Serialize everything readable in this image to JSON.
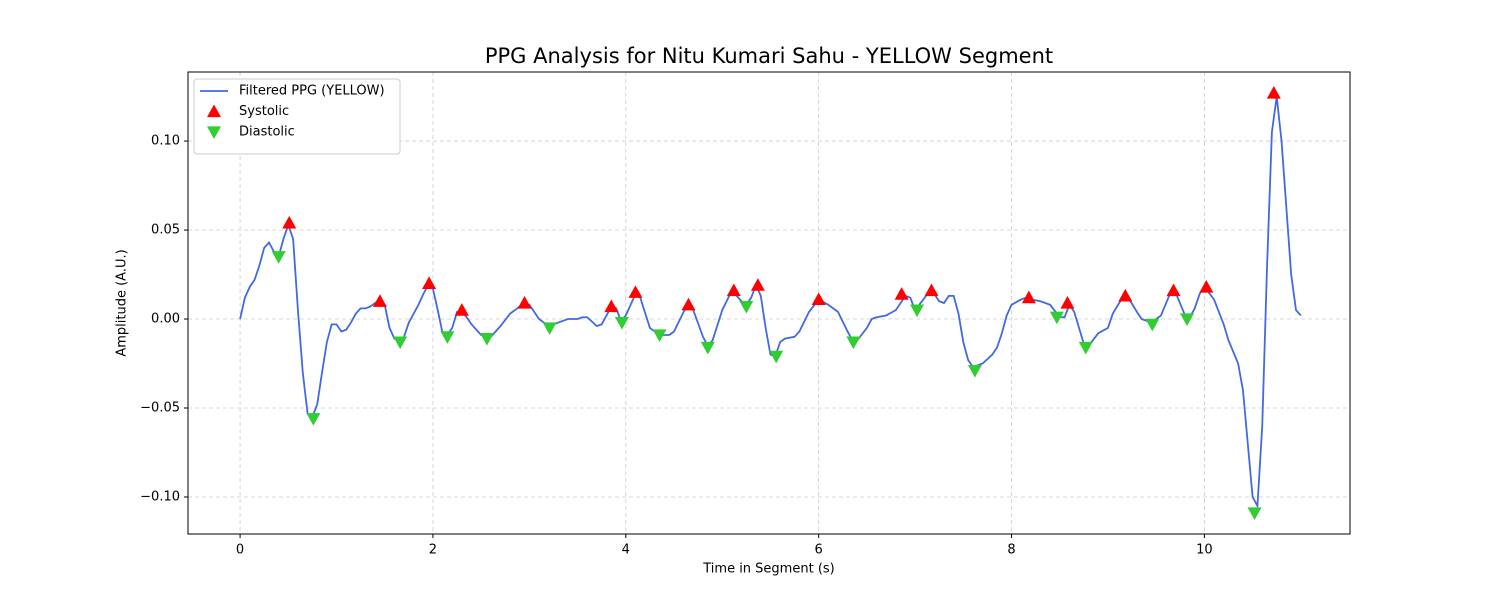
{
  "chart_data": {
    "type": "line",
    "title": "PPG Analysis for Nitu Kumari Sahu - YELLOW Segment",
    "x_label": "Time in Segment (s)",
    "y_label": "Amplitude (A.U.)",
    "xlim": [
      -0.54,
      11.51
    ],
    "ylim": [
      -0.1208,
      0.1388
    ],
    "xticks": [
      0,
      2,
      4,
      6,
      8,
      10
    ],
    "yticks": [
      {
        "value": -0.1,
        "label": "−0.10"
      },
      {
        "value": -0.05,
        "label": "−0.05"
      },
      {
        "value": 0,
        "label": "0.00"
      },
      {
        "value": 0.05,
        "label": "0.05"
      },
      {
        "value": 0.1,
        "label": "0.10"
      }
    ],
    "grid": true,
    "legend": "upper left",
    "series": [
      {
        "name": "Filtered PPG (YELLOW)",
        "type": "line",
        "color": "#4169e1",
        "x": [
          0,
          0.05,
          0.1,
          0.15,
          0.2,
          0.25,
          0.3,
          0.35,
          0.4,
          0.45,
          0.5,
          0.55,
          0.6,
          0.65,
          0.7,
          0.75,
          0.8,
          0.85,
          0.9,
          0.95,
          1.0,
          1.05,
          1.1,
          1.15,
          1.2,
          1.25,
          1.3,
          1.35,
          1.4,
          1.45,
          1.5,
          1.55,
          1.6,
          1.65,
          1.7,
          1.75,
          1.8,
          1.85,
          1.9,
          1.95,
          2.0,
          2.05,
          2.1,
          2.15,
          2.2,
          2.25,
          2.3,
          2.35,
          2.4,
          2.45,
          2.5,
          2.55,
          2.6,
          2.7,
          2.8,
          2.9,
          2.95,
          3.0,
          3.1,
          3.2,
          3.3,
          3.4,
          3.5,
          3.55,
          3.6,
          3.7,
          3.75,
          3.85,
          3.9,
          3.95,
          4.0,
          4.1,
          4.15,
          4.25,
          4.35,
          4.45,
          4.5,
          4.6,
          4.65,
          4.7,
          4.8,
          4.85,
          4.9,
          5.0,
          5.1,
          5.2,
          5.25,
          5.3,
          5.35,
          5.4,
          5.45,
          5.5,
          5.55,
          5.6,
          5.65,
          5.75,
          5.8,
          5.9,
          6.0,
          6.1,
          6.2,
          6.3,
          6.35,
          6.4,
          6.5,
          6.55,
          6.6,
          6.7,
          6.8,
          6.85,
          6.9,
          6.95,
          7.0,
          7.1,
          7.15,
          7.2,
          7.25,
          7.3,
          7.35,
          7.4,
          7.45,
          7.5,
          7.55,
          7.6,
          7.7,
          7.8,
          7.85,
          7.9,
          7.95,
          8.0,
          8.1,
          8.15,
          8.2,
          8.3,
          8.4,
          8.5,
          8.55,
          8.6,
          8.65,
          8.7,
          8.75,
          8.8,
          8.9,
          9.0,
          9.05,
          9.15,
          9.2,
          9.3,
          9.35,
          9.45,
          9.55,
          9.65,
          9.7,
          9.8,
          9.85,
          9.9,
          9.95,
          10.0,
          10.1,
          10.2,
          10.25,
          10.35,
          10.4,
          10.45,
          10.5,
          10.55,
          10.6,
          10.65,
          10.7,
          10.75,
          10.8,
          10.9,
          10.95,
          11.0
        ],
        "values": [
          0,
          0.012,
          0.018,
          0.022,
          0.03,
          0.04,
          0.043,
          0.038,
          0.035,
          0.045,
          0.053,
          0.045,
          0.005,
          -0.03,
          -0.053,
          -0.055,
          -0.048,
          -0.03,
          -0.013,
          -0.003,
          -0.003,
          -0.007,
          -0.006,
          -0.002,
          0.003,
          0.006,
          0.006,
          0.007,
          0.009,
          0.01,
          0.008,
          -0.005,
          -0.011,
          -0.012,
          -0.01,
          -0.002,
          0.003,
          0.008,
          0.014,
          0.019,
          0.017,
          0.005,
          -0.008,
          -0.009,
          -0.005,
          0.004,
          0.004,
          0.001,
          -0.003,
          -0.006,
          -0.009,
          -0.01,
          -0.01,
          -0.004,
          0.003,
          0.007,
          0.009,
          0.008,
          0.0,
          -0.004,
          -0.002,
          0.0,
          0.0,
          0.001,
          0.001,
          -0.004,
          -0.003,
          0.007,
          0.006,
          -0.001,
          0.002,
          0.014,
          0.012,
          -0.005,
          -0.009,
          -0.009,
          -0.007,
          0.004,
          0.008,
          0.005,
          -0.01,
          -0.015,
          -0.012,
          0.005,
          0.016,
          0.01,
          0.008,
          0.012,
          0.019,
          0.013,
          -0.005,
          -0.02,
          -0.021,
          -0.013,
          -0.011,
          -0.01,
          -0.007,
          0.004,
          0.011,
          0.008,
          0.004,
          -0.007,
          -0.012,
          -0.012,
          -0.005,
          0.0,
          0.001,
          0.002,
          0.005,
          0.009,
          0.013,
          0.012,
          0.005,
          0.012,
          0.016,
          0.014,
          0.01,
          0.009,
          0.013,
          0.013,
          0.003,
          -0.013,
          -0.023,
          -0.027,
          -0.025,
          -0.02,
          -0.016,
          -0.008,
          0.002,
          0.008,
          0.011,
          0.012,
          0.011,
          0.01,
          0.008,
          0.001,
          0.001,
          0.008,
          0.004,
          -0.005,
          -0.014,
          -0.015,
          -0.008,
          -0.005,
          0.003,
          0.012,
          0.013,
          0.004,
          0.0,
          -0.002,
          0.002,
          0.015,
          0.015,
          0.002,
          0.001,
          0.006,
          0.014,
          0.018,
          0.011,
          -0.003,
          -0.012,
          -0.025,
          -0.04,
          -0.07,
          -0.1,
          -0.105,
          -0.06,
          0.03,
          0.105,
          0.125,
          0.1,
          0.025,
          0.005,
          0.002
        ]
      },
      {
        "name": "Systolic",
        "type": "scatter",
        "marker": "triangle-up",
        "color": "#ff0000",
        "x": [
          0.51,
          1.45,
          1.96,
          2.3,
          2.95,
          3.85,
          4.1,
          4.65,
          5.12,
          5.37,
          6.0,
          6.86,
          7.17,
          8.18,
          8.58,
          9.18,
          9.68,
          10.02,
          10.72
        ],
        "values": [
          0.054,
          0.01,
          0.02,
          0.005,
          0.009,
          0.007,
          0.015,
          0.008,
          0.016,
          0.019,
          0.011,
          0.014,
          0.016,
          0.012,
          0.009,
          0.013,
          0.016,
          0.018,
          0.127
        ]
      },
      {
        "name": "Diastolic",
        "type": "scatter",
        "marker": "triangle-down",
        "color": "#32cd32",
        "x": [
          0.4,
          0.76,
          1.66,
          2.15,
          2.56,
          3.21,
          3.96,
          4.35,
          4.85,
          5.25,
          5.56,
          6.36,
          7.02,
          7.62,
          8.47,
          8.77,
          9.46,
          9.82,
          10.52
        ],
        "values": [
          0.035,
          -0.056,
          -0.013,
          -0.01,
          -0.011,
          -0.005,
          -0.002,
          -0.009,
          -0.016,
          0.007,
          -0.021,
          -0.013,
          0.005,
          -0.029,
          0.001,
          -0.016,
          -0.003,
          0.0,
          -0.109
        ]
      }
    ]
  }
}
